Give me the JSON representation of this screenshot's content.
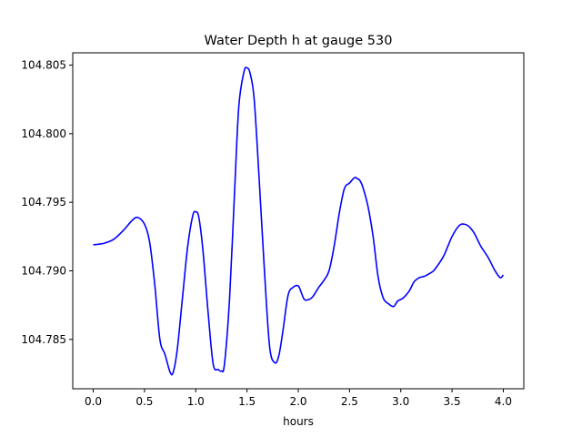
{
  "chart_data": {
    "type": "line",
    "title": "Water Depth h at gauge 530",
    "xlabel": "hours",
    "ylabel": "",
    "xlim": [
      -0.2,
      4.2
    ],
    "ylim": [
      104.7814,
      104.8059
    ],
    "x_ticks": [
      0.0,
      0.5,
      1.0,
      1.5,
      2.0,
      2.5,
      3.0,
      3.5,
      4.0
    ],
    "x_tick_labels": [
      "0.0",
      "0.5",
      "1.0",
      "1.5",
      "2.0",
      "2.5",
      "3.0",
      "3.5",
      "4.0"
    ],
    "y_ticks": [
      104.785,
      104.79,
      104.795,
      104.8,
      104.805
    ],
    "y_tick_labels": [
      "104.785",
      "104.790",
      "104.795",
      "104.800",
      "104.805"
    ],
    "grid": false,
    "series": [
      {
        "color": "#0000ff",
        "x": [
          0.0,
          0.1,
          0.2,
          0.3,
          0.37,
          0.43,
          0.5,
          0.55,
          0.6,
          0.65,
          0.7,
          0.75,
          0.78,
          0.82,
          0.87,
          0.92,
          0.97,
          1.0,
          1.03,
          1.07,
          1.12,
          1.17,
          1.22,
          1.25,
          1.28,
          1.33,
          1.38,
          1.42,
          1.47,
          1.5,
          1.53,
          1.57,
          1.62,
          1.67,
          1.72,
          1.77,
          1.81,
          1.85,
          1.9,
          1.95,
          2.0,
          2.03,
          2.06,
          2.1,
          2.14,
          2.2,
          2.25,
          2.3,
          2.35,
          2.4,
          2.45,
          2.5,
          2.55,
          2.58,
          2.6,
          2.63,
          2.68,
          2.73,
          2.78,
          2.83,
          2.88,
          2.93,
          2.97,
          3.02,
          3.08,
          3.13,
          3.18,
          3.23,
          3.28,
          3.32,
          3.36,
          3.42,
          3.5,
          3.57,
          3.62,
          3.67,
          3.72,
          3.78,
          3.85,
          3.92,
          3.97,
          4.0
        ],
        "y": [
          104.7919,
          104.792,
          104.7923,
          104.793,
          104.7936,
          104.7939,
          104.7934,
          104.7921,
          104.789,
          104.785,
          104.7839,
          104.7826,
          104.7826,
          104.7843,
          104.788,
          104.7917,
          104.794,
          104.7943,
          104.7939,
          104.7915,
          104.787,
          104.7832,
          104.7828,
          104.7827,
          104.7832,
          104.788,
          104.796,
          104.802,
          104.8045,
          104.8048,
          104.8044,
          104.8025,
          104.7965,
          104.79,
          104.7845,
          104.7833,
          104.7838,
          104.7856,
          104.7882,
          104.7888,
          104.7889,
          104.7884,
          104.7879,
          104.7879,
          104.7881,
          104.7888,
          104.7893,
          104.79,
          104.7918,
          104.7942,
          104.796,
          104.7964,
          104.7968,
          104.7967,
          104.7966,
          104.7961,
          104.7947,
          104.7925,
          104.7895,
          104.788,
          104.7876,
          104.7874,
          104.7878,
          104.788,
          104.7885,
          104.7892,
          104.7895,
          104.7896,
          104.7898,
          104.79,
          104.7904,
          104.7911,
          104.7925,
          104.7933,
          104.7934,
          104.7932,
          104.7927,
          104.7918,
          104.791,
          104.79,
          104.7895,
          104.7897
        ]
      }
    ]
  }
}
